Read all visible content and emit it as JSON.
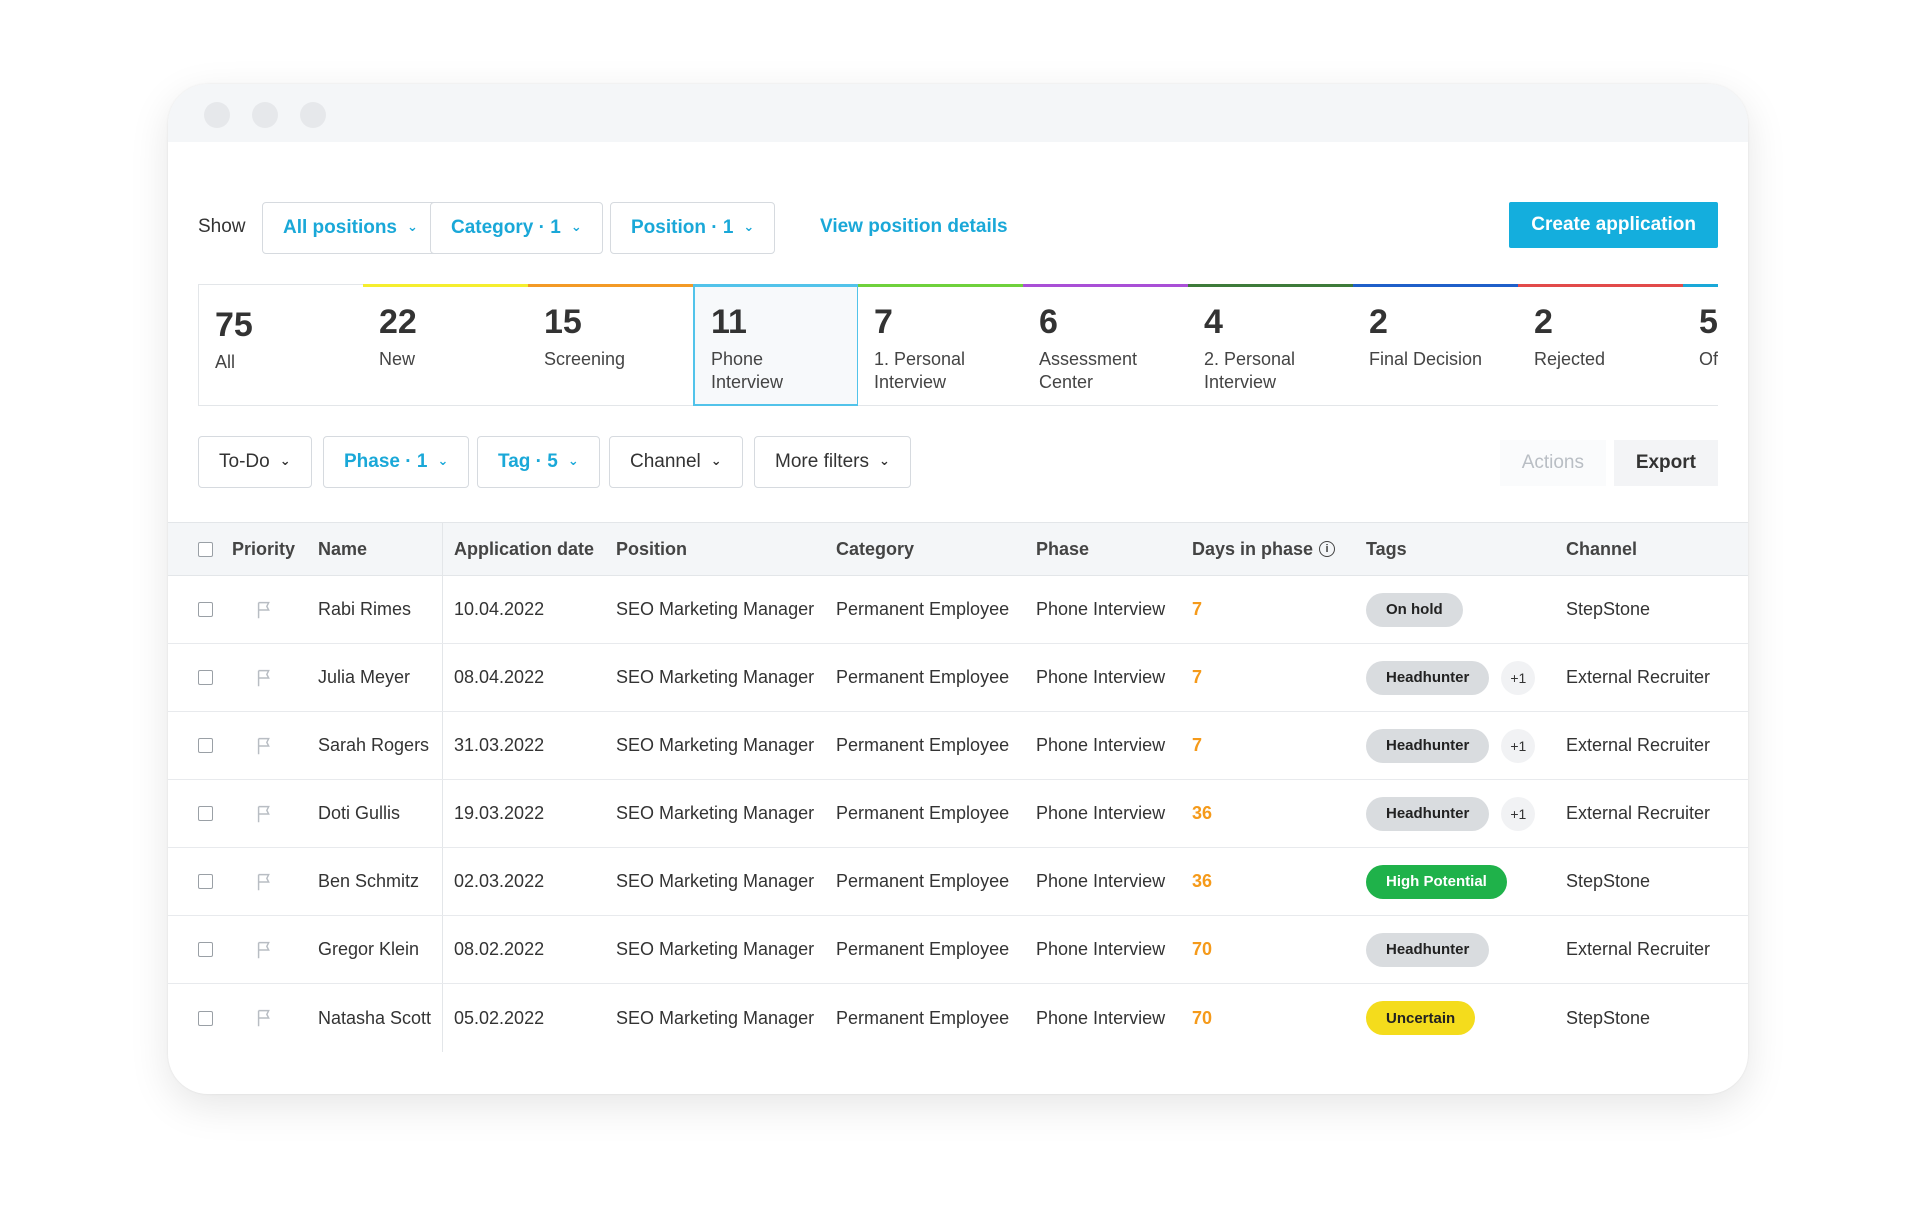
{
  "toolbar": {
    "show_label": "Show",
    "all_positions": "All positions",
    "category": "Category · 1",
    "position": "Position · 1",
    "view_details": "View position details",
    "create_application": "Create application"
  },
  "phases": [
    {
      "count": "75",
      "name": "All",
      "color": ""
    },
    {
      "count": "22",
      "name": "New",
      "color": "#f5ee2e"
    },
    {
      "count": "15",
      "name": "Screening",
      "color": "#f39a26"
    },
    {
      "count": "11",
      "name": "Phone\nInterview",
      "color": "#52c3ea"
    },
    {
      "count": "7",
      "name": "1. Personal\nInterview",
      "color": "#6fd13c"
    },
    {
      "count": "6",
      "name": "Assessment\nCenter",
      "color": "#a94fd6"
    },
    {
      "count": "4",
      "name": "2. Personal\nInterview",
      "color": "#3d7a3a"
    },
    {
      "count": "2",
      "name": "Final Decision",
      "color": "#1f5fc9"
    },
    {
      "count": "2",
      "name": "Rejected",
      "color": "#e24a4a"
    },
    {
      "count": "5",
      "name": "Ofi",
      "color": "#1aa8d8"
    }
  ],
  "filters": {
    "todo": "To-Do",
    "phase": "Phase · 1",
    "tag": "Tag · 5",
    "channel": "Channel",
    "more": "More filters",
    "actions": "Actions",
    "export": "Export"
  },
  "table": {
    "headers": {
      "priority": "Priority",
      "name": "Name",
      "date": "Application date",
      "position": "Position",
      "category": "Category",
      "phase": "Phase",
      "days": "Days in phase",
      "tags": "Tags",
      "channel": "Channel"
    },
    "rows": [
      {
        "name": "Rabi Rimes",
        "date": "10.04.2022",
        "position": "SEO Marketing Manager",
        "category": "Permanent Employee",
        "phase": "Phone Interview",
        "days": "7",
        "tag": "On hold",
        "tag_style": "gray",
        "more": "",
        "channel": "StepStone"
      },
      {
        "name": "Julia Meyer",
        "date": "08.04.2022",
        "position": "SEO Marketing Manager",
        "category": "Permanent Employee",
        "phase": "Phone Interview",
        "days": "7",
        "tag": "Headhunter",
        "tag_style": "gray",
        "more": "+1",
        "channel": "External Recruiter"
      },
      {
        "name": "Sarah Rogers",
        "date": "31.03.2022",
        "position": "SEO Marketing Manager",
        "category": "Permanent Employee",
        "phase": "Phone Interview",
        "days": "7",
        "tag": "Headhunter",
        "tag_style": "gray",
        "more": "+1",
        "channel": "External Recruiter"
      },
      {
        "name": "Doti Gullis",
        "date": "19.03.2022",
        "position": "SEO Marketing Manager",
        "category": "Permanent Employee",
        "phase": "Phone Interview",
        "days": "36",
        "tag": "Headhunter",
        "tag_style": "gray",
        "more": "+1",
        "channel": "External Recruiter"
      },
      {
        "name": "Ben Schmitz",
        "date": "02.03.2022",
        "position": "SEO Marketing Manager",
        "category": "Permanent Employee",
        "phase": "Phone Interview",
        "days": "36",
        "tag": "High Potential",
        "tag_style": "green",
        "more": "",
        "channel": "StepStone"
      },
      {
        "name": "Gregor Klein",
        "date": "08.02.2022",
        "position": "SEO Marketing Manager",
        "category": "Permanent Employee",
        "phase": "Phone Interview",
        "days": "70",
        "tag": "Headhunter",
        "tag_style": "gray",
        "more": "",
        "channel": "External Recruiter"
      },
      {
        "name": "Natasha Scott",
        "date": "05.02.2022",
        "position": "SEO Marketing Manager",
        "category": "Permanent Employee",
        "phase": "Phone Interview",
        "days": "70",
        "tag": "Uncertain",
        "tag_style": "yellow",
        "more": "",
        "channel": "StepStone"
      }
    ]
  }
}
